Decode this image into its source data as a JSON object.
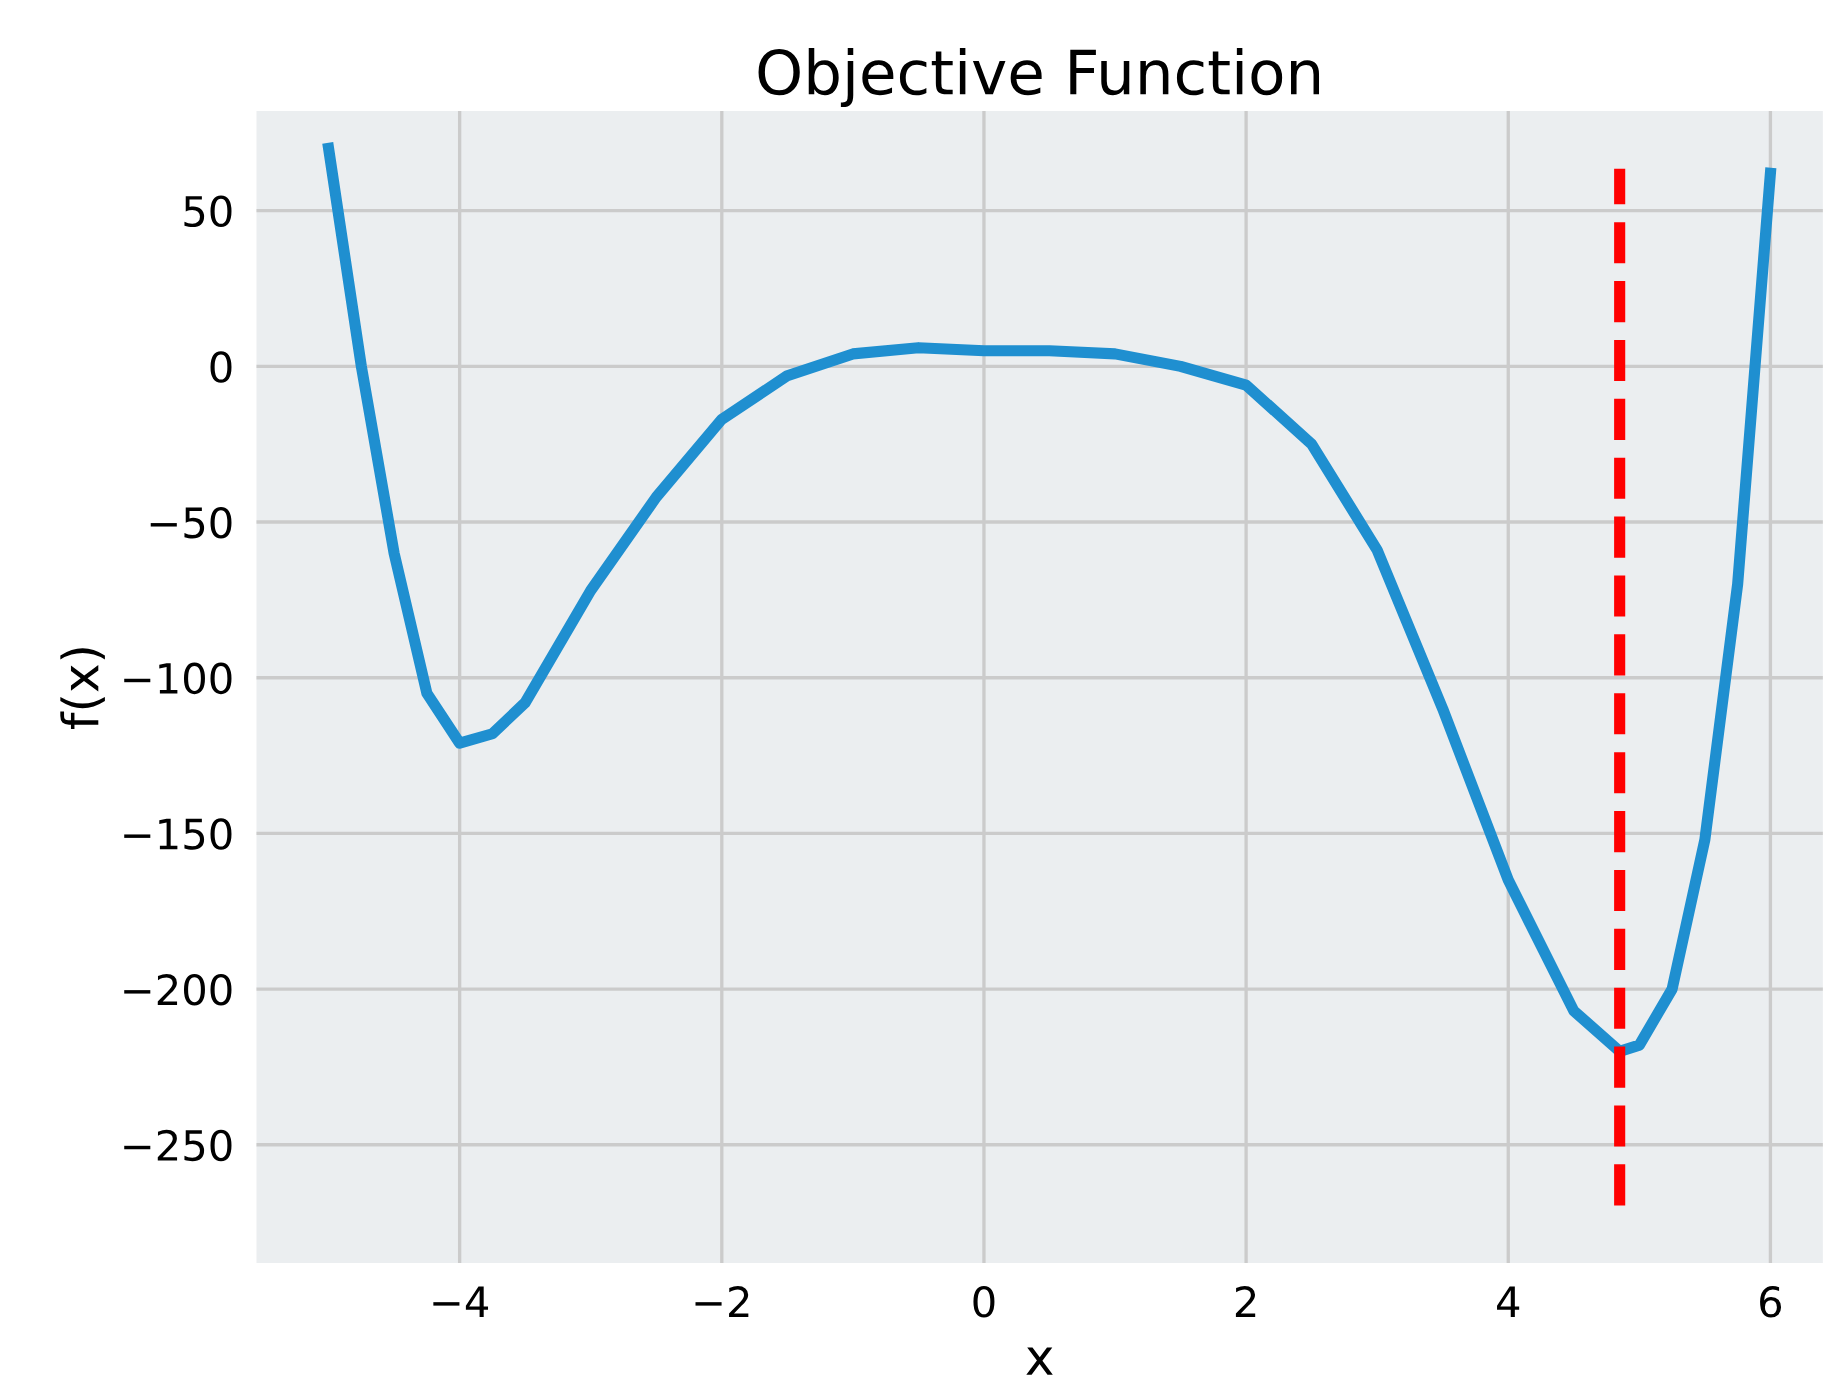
{
  "chart_data": {
    "type": "line",
    "title": "Objective Function",
    "xlabel": "x",
    "ylabel": "f(x)",
    "series": [
      {
        "color": "#1f8fd0",
        "x": [
          -5,
          -4.75,
          -4.5,
          -4.25,
          -4,
          -3.75,
          -3.5,
          -3,
          -2.5,
          -2,
          -1.5,
          -1,
          -0.5,
          0,
          0.5,
          1,
          1.5,
          2,
          2.5,
          3,
          3.5,
          4,
          4.5,
          4.85,
          5,
          5.25,
          5.5,
          5.75,
          6
        ],
        "values": [
          70,
          0,
          -60,
          -105,
          -121,
          -118,
          -108,
          -72,
          -42,
          -17,
          -3,
          4,
          6,
          5,
          5,
          4,
          0,
          -6,
          -25,
          -59,
          -110,
          -165,
          -207,
          -220,
          -218,
          -200,
          -152,
          -70,
          62
        ]
      }
    ],
    "ref_lines": [
      {
        "axis": "x",
        "value": 4.85,
        "color": "#ff0000",
        "line_style": "dashed"
      }
    ],
    "xlim": [
      -5.55,
      6.4
    ],
    "ylim": [
      -288,
      82
    ],
    "xticks": [
      -4,
      -2,
      0,
      2,
      4,
      6
    ],
    "yticks": [
      -250,
      -200,
      -150,
      -100,
      -50,
      0,
      50
    ],
    "grid": true,
    "line_style": "solid",
    "marker": "none",
    "legend": false
  }
}
